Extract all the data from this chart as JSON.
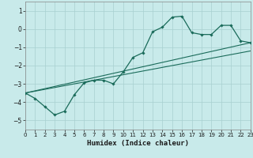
{
  "title": "",
  "xlabel": "Humidex (Indice chaleur)",
  "ylabel": "",
  "background_color": "#c8eaea",
  "grid_color": "#a8d0d0",
  "line_color": "#1a6b5a",
  "xlim": [
    0,
    23
  ],
  "ylim": [
    -5.5,
    1.5
  ],
  "yticks": [
    1,
    0,
    -1,
    -2,
    -3,
    -4,
    -5
  ],
  "xticks": [
    0,
    1,
    2,
    3,
    4,
    5,
    6,
    7,
    8,
    9,
    10,
    11,
    12,
    13,
    14,
    15,
    16,
    17,
    18,
    19,
    20,
    21,
    22,
    23
  ],
  "series1_x": [
    0,
    1,
    2,
    3,
    4,
    5,
    6,
    7,
    8,
    9,
    10,
    11,
    12,
    13,
    14,
    15,
    16,
    17,
    18,
    19,
    20,
    21,
    22,
    23
  ],
  "series1_y": [
    -3.5,
    -3.8,
    -4.25,
    -4.7,
    -4.5,
    -3.6,
    -2.95,
    -2.8,
    -2.8,
    -3.0,
    -2.35,
    -1.55,
    -1.3,
    -0.15,
    0.1,
    0.65,
    0.7,
    -0.2,
    -0.3,
    -0.3,
    0.2,
    0.2,
    -0.65,
    -0.75
  ],
  "series2_x": [
    0,
    23
  ],
  "series2_y": [
    -3.5,
    -0.75
  ],
  "series3_x": [
    0,
    23
  ],
  "series3_y": [
    -3.5,
    -1.2
  ]
}
